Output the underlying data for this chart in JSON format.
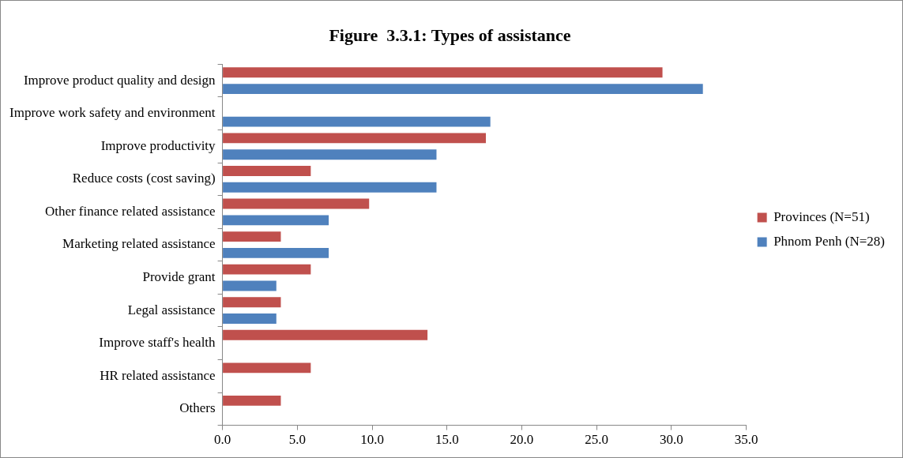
{
  "chart_data": {
    "type": "bar",
    "orientation": "horizontal",
    "title": "Figure  3.3.1: Types of assistance",
    "categories": [
      "Improve product quality and design",
      "Improve work safety and environment",
      "Improve productivity",
      "Reduce costs (cost saving)",
      "Other finance related assistance",
      "Marketing related assistance",
      "Provide grant",
      "Legal assistance",
      "Improve staff's health",
      "HR related assistance",
      "Others"
    ],
    "series": [
      {
        "name": "Provinces (N=51)",
        "color": "#c0504d",
        "values": [
          29.4,
          0,
          17.6,
          5.9,
          9.8,
          3.9,
          5.9,
          3.9,
          13.7,
          5.9,
          3.9
        ]
      },
      {
        "name": "Phnom Penh (N=28)",
        "color": "#4f81bd",
        "values": [
          32.1,
          17.9,
          14.3,
          14.3,
          7.1,
          7.1,
          3.6,
          3.6,
          0,
          0,
          0
        ]
      }
    ],
    "xlim": [
      0,
      35
    ],
    "xticks": [
      {
        "value": 0,
        "label": "0.0"
      },
      {
        "value": 5,
        "label": "5.0"
      },
      {
        "value": 10,
        "label": "10.0"
      },
      {
        "value": 15,
        "label": "15.0"
      },
      {
        "value": 20,
        "label": "20.0"
      },
      {
        "value": 25,
        "label": "25.0"
      },
      {
        "value": 30,
        "label": "30.0"
      },
      {
        "value": 35,
        "label": "35.0"
      }
    ],
    "grid": false,
    "legend": "right"
  }
}
